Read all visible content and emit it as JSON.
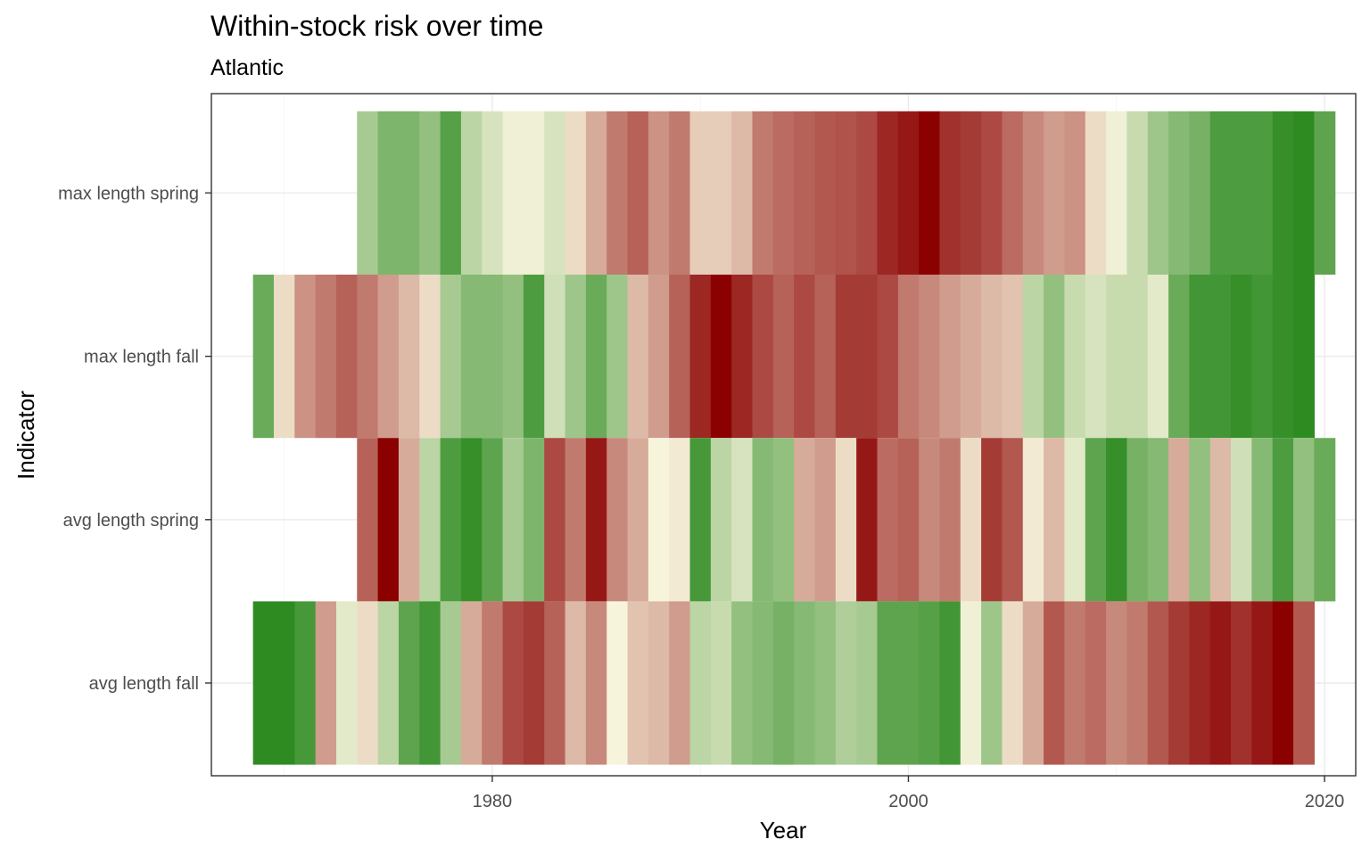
{
  "chart_data": {
    "type": "heatmap",
    "title": "Within-stock risk over time",
    "subtitle": "Atlantic",
    "xlabel": "Year",
    "ylabel": "Indicator",
    "xlim": [
      1966.5,
      2021.5
    ],
    "x_ticks": [
      1980,
      2000,
      2020
    ],
    "x_tick_labels": [
      "1980",
      "2000",
      "2020"
    ],
    "categories": [
      "avg length fall",
      "avg length spring",
      "max length fall",
      "max length spring"
    ],
    "grid": true,
    "legend": "none",
    "color_scale": {
      "low": "#2e8b22",
      "mid": "#f7f4dc",
      "high": "#8b0000",
      "domain": [
        0,
        1
      ]
    },
    "series": [
      {
        "indicator": "max length spring",
        "x": [
          1974,
          1975,
          1976,
          1977,
          1978,
          1979,
          1980,
          1981,
          1982,
          1983,
          1984,
          1985,
          1986,
          1987,
          1988,
          1989,
          1990,
          1991,
          1992,
          1993,
          1994,
          1995,
          1996,
          1997,
          1998,
          1999,
          2000,
          2001,
          2002,
          2003,
          2004,
          2005,
          2006,
          2007,
          2008,
          2009,
          2010,
          2011,
          2012,
          2013,
          2014,
          2015,
          2016,
          2017,
          2018,
          2019,
          2020
        ],
        "risk": [
          0.3,
          0.2,
          0.2,
          0.25,
          0.1,
          0.35,
          0.42,
          0.48,
          0.48,
          0.42,
          0.55,
          0.65,
          0.75,
          0.8,
          0.7,
          0.75,
          0.58,
          0.58,
          0.62,
          0.75,
          0.78,
          0.8,
          0.82,
          0.83,
          0.85,
          0.92,
          0.95,
          1.0,
          0.9,
          0.88,
          0.85,
          0.78,
          0.72,
          0.68,
          0.7,
          0.55,
          0.48,
          0.38,
          0.28,
          0.22,
          0.18,
          0.08,
          0.08,
          0.08,
          0.02,
          0.0,
          0.12
        ]
      },
      {
        "indicator": "max length fall",
        "x": [
          1969,
          1970,
          1971,
          1972,
          1973,
          1974,
          1975,
          1976,
          1977,
          1978,
          1979,
          1980,
          1981,
          1982,
          1983,
          1984,
          1985,
          1986,
          1987,
          1988,
          1989,
          1990,
          1991,
          1992,
          1993,
          1994,
          1995,
          1996,
          1997,
          1998,
          1999,
          2000,
          2001,
          2002,
          2003,
          2004,
          2005,
          2006,
          2007,
          2008,
          2009,
          2010,
          2011,
          2012,
          2013,
          2014,
          2015,
          2016,
          2017,
          2018,
          2019
        ],
        "risk": [
          0.15,
          0.55,
          0.7,
          0.75,
          0.8,
          0.75,
          0.68,
          0.62,
          0.55,
          0.3,
          0.22,
          0.22,
          0.25,
          0.08,
          0.4,
          0.28,
          0.15,
          0.28,
          0.62,
          0.68,
          0.8,
          0.92,
          1.0,
          0.92,
          0.85,
          0.8,
          0.85,
          0.8,
          0.88,
          0.88,
          0.85,
          0.75,
          0.72,
          0.68,
          0.65,
          0.62,
          0.6,
          0.35,
          0.25,
          0.38,
          0.42,
          0.38,
          0.38,
          0.45,
          0.15,
          0.05,
          0.05,
          0.02,
          0.05,
          0.02,
          0.0
        ]
      },
      {
        "indicator": "avg length spring",
        "x": [
          1974,
          1975,
          1976,
          1977,
          1978,
          1979,
          1980,
          1981,
          1982,
          1983,
          1984,
          1985,
          1986,
          1987,
          1988,
          1989,
          1990,
          1991,
          1992,
          1993,
          1994,
          1995,
          1996,
          1997,
          1998,
          1999,
          2000,
          2001,
          2002,
          2003,
          2004,
          2005,
          2006,
          2007,
          2008,
          2009,
          2010,
          2011,
          2012,
          2013,
          2014,
          2015,
          2016,
          2017,
          2018,
          2019,
          2020
        ],
        "risk": [
          0.8,
          1.0,
          0.65,
          0.35,
          0.08,
          0.02,
          0.12,
          0.3,
          0.2,
          0.85,
          0.75,
          0.95,
          0.72,
          0.65,
          0.5,
          0.52,
          0.06,
          0.35,
          0.42,
          0.22,
          0.25,
          0.65,
          0.68,
          0.55,
          0.95,
          0.78,
          0.8,
          0.72,
          0.75,
          0.55,
          0.88,
          0.82,
          0.52,
          0.62,
          0.45,
          0.12,
          0.02,
          0.18,
          0.22,
          0.65,
          0.25,
          0.62,
          0.4,
          0.22,
          0.08,
          0.25,
          0.15
        ]
      },
      {
        "indicator": "avg length fall",
        "x": [
          1969,
          1970,
          1971,
          1972,
          1973,
          1974,
          1975,
          1976,
          1977,
          1978,
          1979,
          1980,
          1981,
          1982,
          1983,
          1984,
          1985,
          1986,
          1987,
          1988,
          1989,
          1990,
          1991,
          1992,
          1993,
          1994,
          1995,
          1996,
          1997,
          1998,
          1999,
          2000,
          2001,
          2002,
          2003,
          2004,
          2005,
          2006,
          2007,
          2008,
          2009,
          2010,
          2011,
          2012,
          2013,
          2014,
          2015,
          2016,
          2017,
          2018,
          2019
        ],
        "risk": [
          0.0,
          0.0,
          0.06,
          0.68,
          0.45,
          0.55,
          0.35,
          0.12,
          0.05,
          0.3,
          0.65,
          0.75,
          0.85,
          0.88,
          0.8,
          0.62,
          0.72,
          0.5,
          0.6,
          0.62,
          0.68,
          0.35,
          0.38,
          0.25,
          0.22,
          0.18,
          0.22,
          0.25,
          0.32,
          0.3,
          0.12,
          0.12,
          0.1,
          0.05,
          0.48,
          0.28,
          0.55,
          0.65,
          0.82,
          0.75,
          0.78,
          0.72,
          0.75,
          0.82,
          0.88,
          0.92,
          0.95,
          0.9,
          0.95,
          1.0,
          0.82
        ]
      }
    ]
  }
}
